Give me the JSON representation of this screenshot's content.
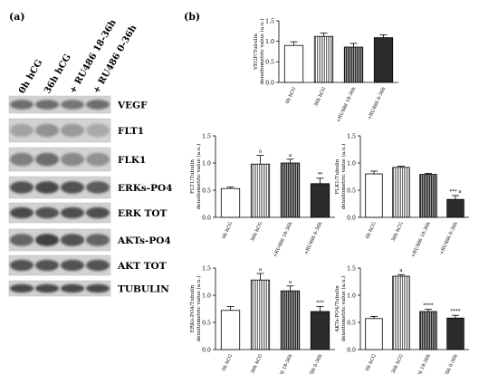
{
  "panels": {
    "a": "(a)",
    "b": "(b)"
  },
  "blot": {
    "lanes": [
      "0h hCG",
      "36h hCG",
      "+ RU486 18-36h",
      "+ RU486 0-36h"
    ],
    "bands": [
      "VEGF",
      "FLT1",
      "FLK1",
      "ERKs-PO4",
      "ERK TOT",
      "AKTs-PO4",
      "AKT TOT",
      "TUBULIN"
    ]
  },
  "chart_data": [
    {
      "type": "bar",
      "title": "",
      "xlabel": "",
      "ylabel": "VEGF/Tubulin densitometric value (a.u.)",
      "categories": [
        "0h hCG",
        "36h hCG",
        "+RU486 18-36h",
        "+RU486 0-36h"
      ],
      "values": [
        0.9,
        1.12,
        0.86,
        1.09
      ],
      "errors": [
        0.09,
        0.08,
        0.09,
        0.07
      ],
      "annotations": [
        "",
        "",
        "",
        ""
      ],
      "ylim": [
        0,
        1.5
      ],
      "yticks": [
        "0.0",
        "0.5",
        "1.0",
        "1.5"
      ],
      "fills": [
        "white",
        "lines-light",
        "lines-dark",
        "dark"
      ]
    },
    {
      "type": "bar",
      "title": "",
      "xlabel": "",
      "ylabel": "FLT1/Tubulin densitometric value (a.u.)",
      "categories": [
        "0h hCG",
        "36h hCG",
        "+RU486 18-36h",
        "+RU486 0-36h"
      ],
      "values": [
        0.53,
        0.98,
        1.0,
        0.62
      ],
      "errors": [
        0.03,
        0.16,
        0.07,
        0.1
      ],
      "annotations": [
        "",
        "a",
        "a",
        "**"
      ],
      "ylim": [
        0,
        1.5
      ],
      "yticks": [
        "0.0",
        "0.5",
        "1.0",
        "1.5"
      ],
      "fills": [
        "white",
        "lines-light",
        "lines-dark",
        "dark"
      ]
    },
    {
      "type": "bar",
      "title": "",
      "xlabel": "",
      "ylabel": "FLK1/Tubulin densitometric value (a.u.)",
      "categories": [
        "0h hCG",
        "36h hCG",
        "+RU486 18-36h",
        "+RU486 0-36h"
      ],
      "values": [
        0.8,
        0.92,
        0.79,
        0.33
      ],
      "errors": [
        0.05,
        0.02,
        0.02,
        0.07
      ],
      "annotations": [
        "",
        "",
        "",
        "*** a"
      ],
      "ylim": [
        0,
        1.5
      ],
      "yticks": [
        "0.0",
        "0.5",
        "1.0",
        "1.5"
      ],
      "fills": [
        "white",
        "lines-light",
        "lines-dark",
        "dark"
      ]
    },
    {
      "type": "bar",
      "title": "",
      "xlabel": "",
      "ylabel": "ERKs-PO4/Tubulin densitometric value (a.u.)",
      "categories": [
        "0h hCG",
        "36h hCG",
        "+RU486 18-36h",
        "+RU486 0-36h"
      ],
      "values": [
        0.72,
        1.28,
        1.08,
        0.7
      ],
      "errors": [
        0.07,
        0.12,
        0.09,
        0.09
      ],
      "annotations": [
        "",
        "a",
        "a",
        "***"
      ],
      "ylim": [
        0,
        1.5
      ],
      "yticks": [
        "0.0",
        "0.5",
        "1.0",
        "1.5"
      ],
      "fills": [
        "white",
        "lines-light",
        "lines-dark",
        "dark"
      ]
    },
    {
      "type": "bar",
      "title": "",
      "xlabel": "",
      "ylabel": "AKTs-PO4/Tubulin densitometric value (a.u.)",
      "categories": [
        "0h hCG",
        "36h hCG",
        "+RU486 18-36h",
        "+RU486 0-36h"
      ],
      "values": [
        0.57,
        1.35,
        0.7,
        0.58
      ],
      "errors": [
        0.04,
        0.03,
        0.04,
        0.05
      ],
      "annotations": [
        "",
        "a",
        "****",
        "****"
      ],
      "ylim": [
        0,
        1.5
      ],
      "yticks": [
        "0.0",
        "0.5",
        "1.0",
        "1.5"
      ],
      "fills": [
        "white",
        "lines-light",
        "lines-dark",
        "dark"
      ]
    }
  ]
}
